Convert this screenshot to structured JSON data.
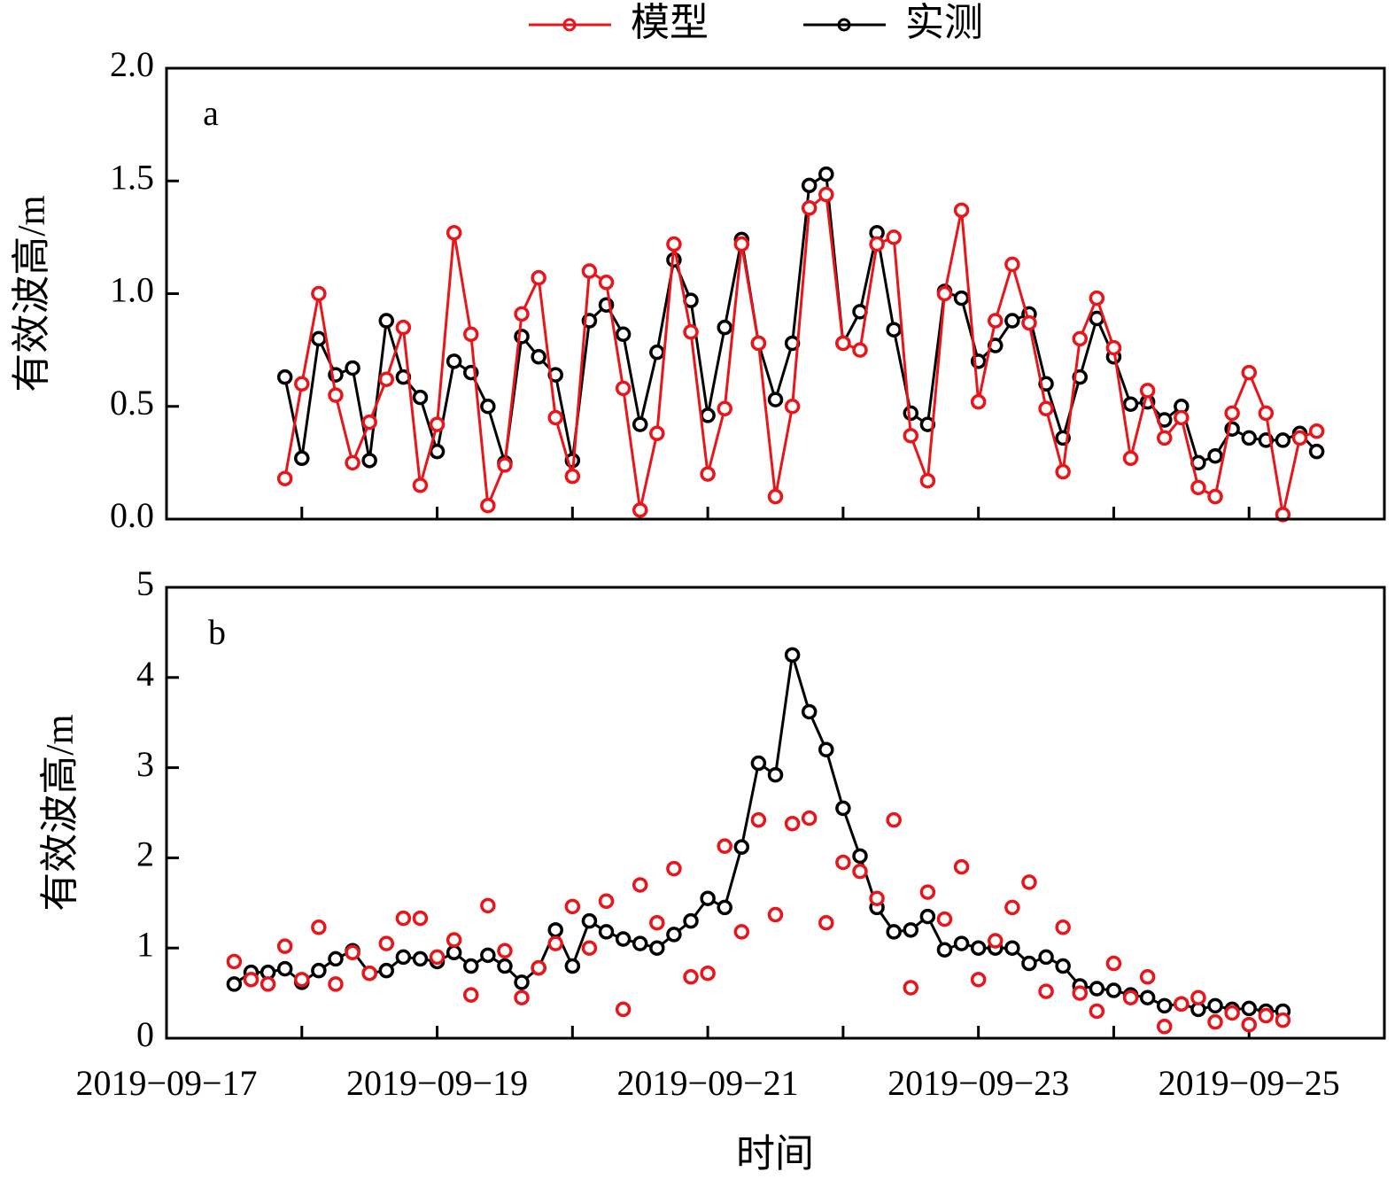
{
  "chart_data": [
    {
      "type": "line",
      "annotation": "a",
      "y_label": "有效波高/m",
      "xlim": [
        "2019-09-17",
        "2019-09-26"
      ],
      "xticks": [
        {
          "value": "2019-09-17"
        },
        {
          "value": "2019-09-18"
        },
        {
          "value": "2019-09-19"
        },
        {
          "value": "2019-09-20"
        },
        {
          "value": "2019-09-21"
        },
        {
          "value": "2019-09-22"
        },
        {
          "value": "2019-09-23"
        },
        {
          "value": "2019-09-24"
        },
        {
          "value": "2019-09-25"
        }
      ],
      "ylim": [
        0,
        2
      ],
      "yticks": [
        {
          "value": 0,
          "label": "0.0"
        },
        {
          "value": 0.5,
          "label": "0.5"
        },
        {
          "value": 1,
          "label": "1.0"
        },
        {
          "value": 1.5,
          "label": "1.5"
        },
        {
          "value": 2,
          "label": "2.0"
        }
      ],
      "x": [
        "2019-09-17T21:00",
        "2019-09-18T00:00",
        "2019-09-18T03:00",
        "2019-09-18T06:00",
        "2019-09-18T09:00",
        "2019-09-18T12:00",
        "2019-09-18T15:00",
        "2019-09-18T18:00",
        "2019-09-18T21:00",
        "2019-09-19T00:00",
        "2019-09-19T03:00",
        "2019-09-19T06:00",
        "2019-09-19T09:00",
        "2019-09-19T12:00",
        "2019-09-19T15:00",
        "2019-09-19T18:00",
        "2019-09-19T21:00",
        "2019-09-20T00:00",
        "2019-09-20T03:00",
        "2019-09-20T06:00",
        "2019-09-20T09:00",
        "2019-09-20T12:00",
        "2019-09-20T15:00",
        "2019-09-20T18:00",
        "2019-09-20T21:00",
        "2019-09-21T00:00",
        "2019-09-21T03:00",
        "2019-09-21T06:00",
        "2019-09-21T09:00",
        "2019-09-21T12:00",
        "2019-09-21T15:00",
        "2019-09-21T18:00",
        "2019-09-21T21:00",
        "2019-09-22T00:00",
        "2019-09-22T03:00",
        "2019-09-22T06:00",
        "2019-09-22T09:00",
        "2019-09-22T12:00",
        "2019-09-22T15:00",
        "2019-09-22T18:00",
        "2019-09-22T21:00",
        "2019-09-23T00:00",
        "2019-09-23T03:00",
        "2019-09-23T06:00",
        "2019-09-23T09:00",
        "2019-09-23T12:00",
        "2019-09-23T15:00",
        "2019-09-23T18:00",
        "2019-09-23T21:00",
        "2019-09-24T00:00",
        "2019-09-24T03:00",
        "2019-09-24T06:00",
        "2019-09-24T09:00",
        "2019-09-24T12:00",
        "2019-09-24T15:00",
        "2019-09-24T18:00",
        "2019-09-24T21:00",
        "2019-09-25T00:00",
        "2019-09-25T03:00",
        "2019-09-25T06:00",
        "2019-09-25T09:00",
        "2019-09-25T12:00"
      ],
      "series": [
        {
          "name": "实测",
          "color": "#000000",
          "mode": "lines+markers",
          "values": [
            0.63,
            0.27,
            0.8,
            0.64,
            0.67,
            0.26,
            0.88,
            0.63,
            0.54,
            0.3,
            0.7,
            0.65,
            0.5,
            0.25,
            0.81,
            0.72,
            0.64,
            0.26,
            0.88,
            0.95,
            0.82,
            0.42,
            0.74,
            1.15,
            0.97,
            0.46,
            0.85,
            1.24,
            0.78,
            0.53,
            0.78,
            1.48,
            1.53,
            0.78,
            0.92,
            1.27,
            0.84,
            0.47,
            0.42,
            1.01,
            0.98,
            0.7,
            0.77,
            0.88,
            0.91,
            0.6,
            0.36,
            0.63,
            0.89,
            0.72,
            0.51,
            0.52,
            0.44,
            0.5,
            0.25,
            0.28,
            0.4,
            0.36,
            0.35,
            0.35,
            0.38,
            0.3
          ]
        },
        {
          "name": "模型",
          "color": "#e8161b",
          "mode": "lines+markers",
          "values": [
            0.18,
            0.6,
            1.0,
            0.55,
            0.25,
            0.43,
            0.62,
            0.85,
            0.15,
            0.42,
            1.27,
            0.82,
            0.06,
            0.24,
            0.91,
            1.07,
            0.45,
            0.19,
            1.1,
            1.05,
            0.58,
            0.04,
            0.38,
            1.22,
            0.83,
            0.2,
            0.49,
            1.22,
            0.78,
            0.1,
            0.5,
            1.38,
            1.44,
            0.78,
            0.75,
            1.22,
            1.25,
            0.37,
            0.17,
            1.0,
            1.37,
            0.52,
            0.88,
            1.13,
            0.87,
            0.49,
            0.21,
            0.8,
            0.98,
            0.76,
            0.27,
            0.57,
            0.36,
            0.45,
            0.14,
            0.1,
            0.47,
            0.65,
            0.47,
            0.02,
            0.36,
            0.39
          ]
        }
      ]
    },
    {
      "type": "line",
      "annotation": "b",
      "y_label": "有效波高/m",
      "x_label": "时间",
      "xlim": [
        "2019-09-17",
        "2019-09-26"
      ],
      "xticks": [
        {
          "value": "2019-09-17",
          "label": "2019−09−17"
        },
        {
          "value": "2019-09-18"
        },
        {
          "value": "2019-09-19",
          "label": "2019−09−19"
        },
        {
          "value": "2019-09-20"
        },
        {
          "value": "2019-09-21",
          "label": "2019−09−21"
        },
        {
          "value": "2019-09-22"
        },
        {
          "value": "2019-09-23",
          "label": "2019−09−23"
        },
        {
          "value": "2019-09-24"
        },
        {
          "value": "2019-09-25",
          "label": "2019−09−25"
        }
      ],
      "ylim": [
        0,
        5
      ],
      "yticks": [
        0,
        1,
        2,
        3,
        4,
        5
      ],
      "x": [
        "2019-09-17T12:00",
        "2019-09-17T15:00",
        "2019-09-17T18:00",
        "2019-09-17T21:00",
        "2019-09-18T00:00",
        "2019-09-18T03:00",
        "2019-09-18T06:00",
        "2019-09-18T09:00",
        "2019-09-18T12:00",
        "2019-09-18T15:00",
        "2019-09-18T18:00",
        "2019-09-18T21:00",
        "2019-09-19T00:00",
        "2019-09-19T03:00",
        "2019-09-19T06:00",
        "2019-09-19T09:00",
        "2019-09-19T12:00",
        "2019-09-19T15:00",
        "2019-09-19T18:00",
        "2019-09-19T21:00",
        "2019-09-20T00:00",
        "2019-09-20T03:00",
        "2019-09-20T06:00",
        "2019-09-20T09:00",
        "2019-09-20T12:00",
        "2019-09-20T15:00",
        "2019-09-20T18:00",
        "2019-09-20T21:00",
        "2019-09-21T00:00",
        "2019-09-21T03:00",
        "2019-09-21T06:00",
        "2019-09-21T09:00",
        "2019-09-21T12:00",
        "2019-09-21T15:00",
        "2019-09-21T18:00",
        "2019-09-21T21:00",
        "2019-09-22T00:00",
        "2019-09-22T03:00",
        "2019-09-22T06:00",
        "2019-09-22T09:00",
        "2019-09-22T12:00",
        "2019-09-22T15:00",
        "2019-09-22T18:00",
        "2019-09-22T21:00",
        "2019-09-23T00:00",
        "2019-09-23T03:00",
        "2019-09-23T06:00",
        "2019-09-23T09:00",
        "2019-09-23T12:00",
        "2019-09-23T15:00",
        "2019-09-23T18:00",
        "2019-09-23T21:00",
        "2019-09-24T00:00",
        "2019-09-24T03:00",
        "2019-09-24T06:00",
        "2019-09-24T09:00",
        "2019-09-24T12:00",
        "2019-09-24T15:00",
        "2019-09-24T18:00",
        "2019-09-24T21:00",
        "2019-09-25T00:00",
        "2019-09-25T03:00",
        "2019-09-25T06:00"
      ],
      "series": [
        {
          "name": "实测",
          "color": "#000000",
          "mode": "lines+markers",
          "values": [
            0.6,
            0.73,
            0.73,
            0.77,
            0.62,
            0.75,
            0.88,
            0.97,
            0.72,
            0.75,
            0.9,
            0.88,
            0.85,
            0.95,
            0.8,
            0.92,
            0.8,
            0.62,
            0.78,
            1.2,
            0.8,
            1.3,
            1.18,
            1.1,
            1.05,
            1.0,
            1.15,
            1.3,
            1.55,
            1.45,
            2.12,
            3.05,
            2.92,
            4.25,
            3.62,
            3.2,
            2.55,
            2.02,
            1.45,
            1.18,
            1.2,
            1.35,
            0.98,
            1.05,
            1.0,
            1.0,
            1.0,
            0.83,
            0.9,
            0.8,
            0.58,
            0.55,
            0.53,
            0.48,
            0.45,
            0.36,
            0.38,
            0.32,
            0.36,
            0.32,
            0.33,
            0.3,
            0.3
          ]
        },
        {
          "name": "模型",
          "color": "#e8161b",
          "mode": "markers",
          "values": [
            0.85,
            0.65,
            0.6,
            1.02,
            0.65,
            1.23,
            0.6,
            0.95,
            0.72,
            1.05,
            1.33,
            1.33,
            0.9,
            1.09,
            0.48,
            1.47,
            0.97,
            0.45,
            0.78,
            1.05,
            1.46,
            1.0,
            1.52,
            0.32,
            1.7,
            1.28,
            1.88,
            0.68,
            0.72,
            2.13,
            1.18,
            2.42,
            1.37,
            2.38,
            2.44,
            1.28,
            1.95,
            1.85,
            1.55,
            2.42,
            0.56,
            1.62,
            1.32,
            1.9,
            0.65,
            1.08,
            1.45,
            1.73,
            0.52,
            1.23,
            0.5,
            0.3,
            0.83,
            0.45,
            0.68,
            0.13,
            0.38,
            0.45,
            0.18,
            0.28,
            0.15,
            0.25,
            0.2
          ]
        }
      ]
    }
  ]
}
